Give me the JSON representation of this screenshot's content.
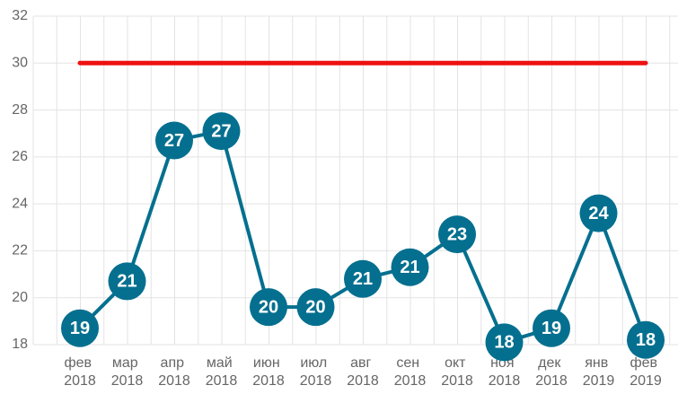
{
  "chart_data": {
    "type": "line",
    "categories": [
      "фев 2018",
      "мар 2018",
      "апр 2018",
      "май 2018",
      "июн 2018",
      "июл 2018",
      "авг 2018",
      "сен 2018",
      "окт 2018",
      "ноя 2018",
      "дек 2018",
      "янв 2019",
      "фев 2019"
    ],
    "series": [
      {
        "color": "#056f8f",
        "values": [
          18.7,
          20.7,
          26.7,
          27.1,
          19.6,
          19.6,
          20.8,
          21.3,
          22.7,
          18.1,
          18.7,
          23.6,
          18.2
        ],
        "value_labels": [
          "19",
          "21",
          "27",
          "27",
          "20",
          "20",
          "21",
          "21",
          "23",
          "18",
          "19",
          "24",
          "18"
        ]
      }
    ],
    "reference_line": {
      "value": 30,
      "color": "#ee1111"
    },
    "ylim": [
      18,
      32
    ],
    "yticks": [
      18,
      20,
      22,
      24,
      26,
      28,
      30,
      32
    ],
    "grid": true
  }
}
